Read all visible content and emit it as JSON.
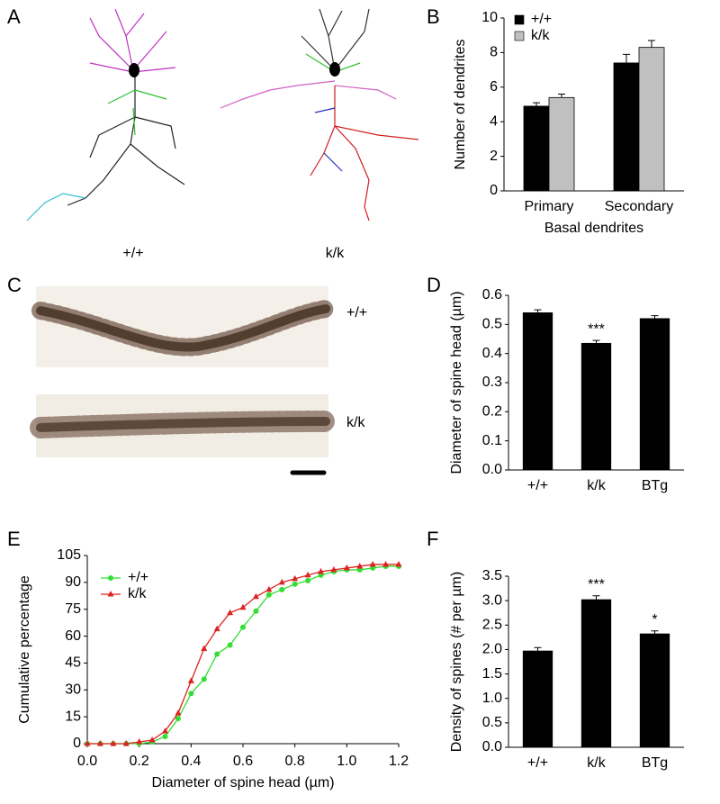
{
  "figure": {
    "panel_labels": [
      "A",
      "B",
      "C",
      "D",
      "E",
      "F"
    ],
    "panel_a_labels": [
      "+/+",
      "k/k"
    ],
    "panel_c_labels": [
      "+/+",
      "k/k"
    ]
  },
  "chart_data": [
    {
      "type": "bar",
      "categories": [
        "Primary",
        "Secondary"
      ],
      "xlabel": "Basal dendrites",
      "ylabel": "Number of dendrites",
      "series": [
        {
          "name": "+/+",
          "color": "#000000",
          "values": [
            4.9,
            7.4
          ],
          "errors": [
            0.2,
            0.5
          ]
        },
        {
          "name": "k/k",
          "color": "#c0c0c0",
          "values": [
            5.4,
            8.3
          ],
          "errors": [
            0.2,
            0.4
          ]
        }
      ],
      "ylim": [
        0,
        10
      ],
      "yticks": [
        0,
        2,
        4,
        6,
        8,
        10
      ],
      "legend": "top-left"
    },
    {
      "type": "bar",
      "categories": [
        "+/+",
        "k/k",
        "BTg"
      ],
      "ylabel": "Diameter of spine head (µm)",
      "values": [
        0.54,
        0.435,
        0.52
      ],
      "errors": [
        0.01,
        0.01,
        0.01
      ],
      "color": "#000000",
      "significance": [
        null,
        "***",
        null
      ],
      "ylim": [
        0,
        0.6
      ],
      "yticks": [
        {
          "value": 0,
          "label": "0.0"
        },
        0.1,
        0.2,
        0.3,
        0.4,
        0.5,
        0.6
      ]
    },
    {
      "type": "line",
      "xlabel": "Diameter of spine head (µm)",
      "ylabel": "Cumulative percentage",
      "x": [
        0,
        0.05,
        0.1,
        0.15,
        0.2,
        0.25,
        0.3,
        0.35,
        0.4,
        0.45,
        0.5,
        0.55,
        0.6,
        0.65,
        0.7,
        0.75,
        0.8,
        0.85,
        0.9,
        0.95,
        1.0,
        1.05,
        1.1,
        1.15,
        1.2
      ],
      "series": [
        {
          "name": "+/+",
          "color": "#33dd33",
          "marker": "circle",
          "values": [
            0,
            0,
            0,
            0,
            0,
            1,
            4,
            14,
            28,
            36,
            50,
            55,
            65,
            74,
            83,
            86,
            89,
            91,
            94,
            96,
            97,
            97,
            98,
            99,
            99
          ]
        },
        {
          "name": "k/k",
          "color": "#dd2222",
          "marker": "triangle",
          "values": [
            0,
            0,
            0,
            0,
            1,
            2,
            7,
            17,
            35,
            53,
            64,
            73,
            76,
            82,
            86,
            90,
            92,
            94,
            96,
            97,
            98,
            99,
            100,
            100,
            100
          ]
        }
      ],
      "xlim": [
        0,
        1.2
      ],
      "xticks": [
        {
          "value": 0,
          "label": "0.0"
        },
        0.2,
        0.4,
        0.6,
        0.8,
        {
          "value": 1,
          "label": "1.0"
        },
        1.2
      ],
      "ylim": [
        0,
        105
      ],
      "yticks": [
        0,
        15,
        30,
        45,
        60,
        75,
        90,
        105
      ],
      "legend": "top-left"
    },
    {
      "type": "bar",
      "categories": [
        "+/+",
        "k/k",
        "BTg"
      ],
      "ylabel": "Density of spines (# per µm)",
      "values": [
        1.97,
        3.02,
        2.32
      ],
      "errors": [
        0.07,
        0.08,
        0.06
      ],
      "color": "#000000",
      "significance": [
        null,
        "***",
        "*"
      ],
      "ylim": [
        0,
        3.5
      ],
      "yticks": [
        {
          "value": 0,
          "label": "0.0"
        },
        0.5,
        {
          "value": 1,
          "label": "1.0"
        },
        1.5,
        {
          "value": 2,
          "label": "2.0"
        },
        2.5,
        {
          "value": 3,
          "label": "3.0"
        },
        3.5
      ]
    }
  ]
}
